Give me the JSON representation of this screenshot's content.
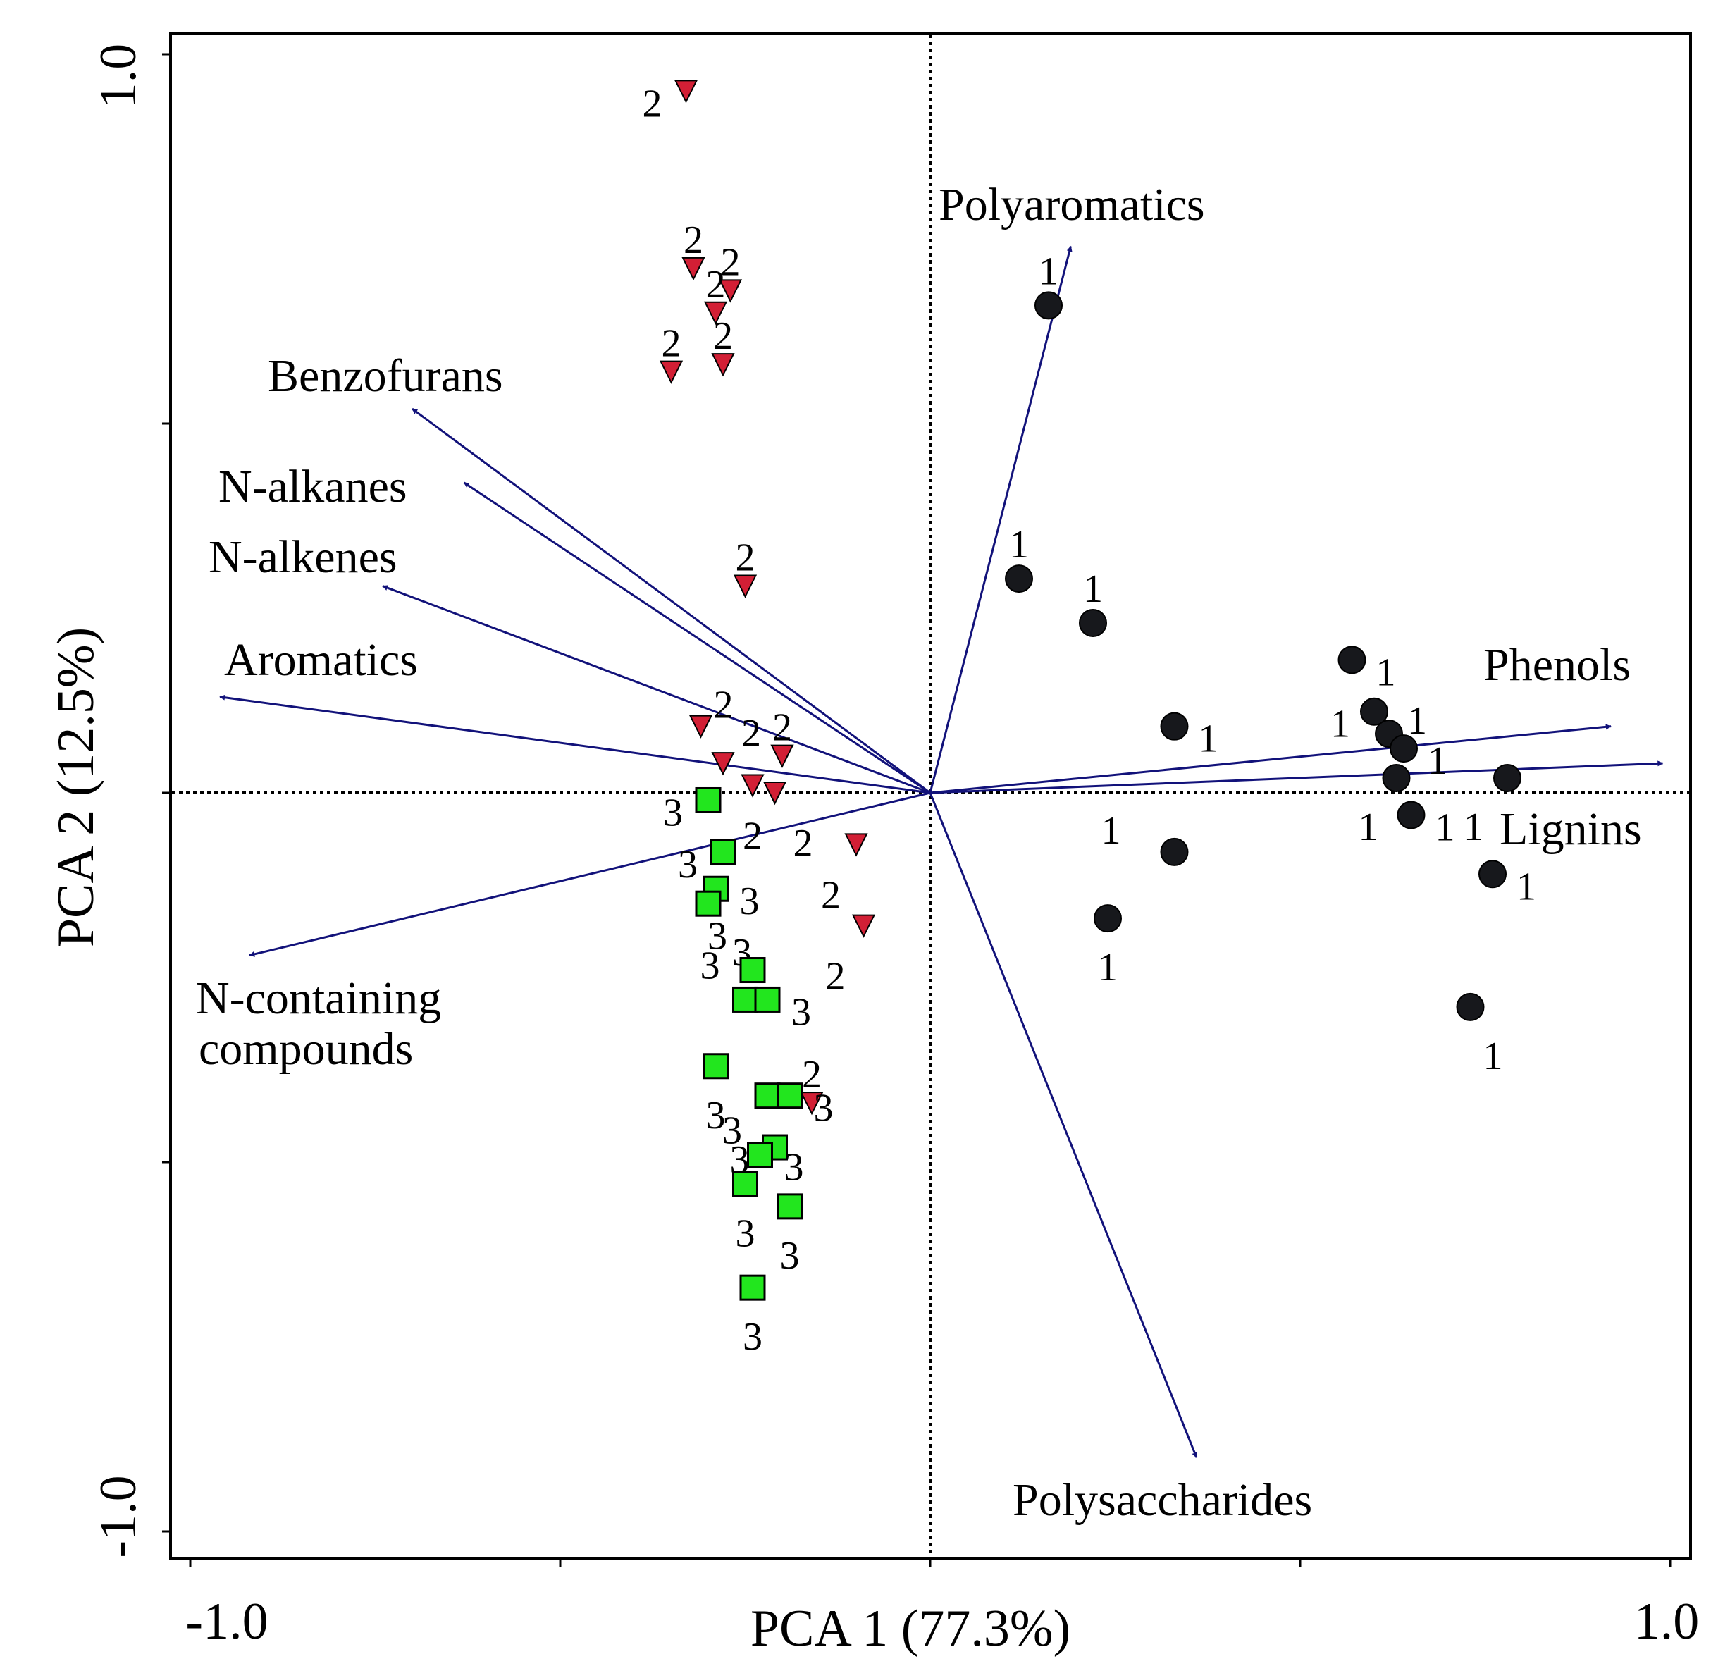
{
  "chart_data": {
    "type": "scatter",
    "subtype": "pca-biplot",
    "title": "",
    "xlabel": "PCA 1 (77.3%)",
    "ylabel": "PCA 2 (12.5%)",
    "xlim": [
      -1.0,
      1.0
    ],
    "ylim": [
      -1.0,
      1.0
    ],
    "x_tick_labels": [
      {
        "value": -1.0,
        "label": "-1.0"
      },
      {
        "value": 1.0,
        "label": "1.0"
      }
    ],
    "y_tick_labels": [
      {
        "value": 1.0,
        "label": "1.0"
      },
      {
        "value": -1.0,
        "label": "-1.0"
      }
    ],
    "x_ticks": [
      -1.0,
      -0.5,
      0.0,
      0.5,
      1.0
    ],
    "y_ticks": [
      -1.0,
      -0.5,
      0.0,
      0.5,
      1.0
    ],
    "reference_lines": {
      "x": 0,
      "y": 0,
      "style": "dotted"
    },
    "grid": false,
    "colors": {
      "loading_arrow": "#12127a",
      "group1": "#17181c",
      "group2": "#d21f35",
      "group3": "#22e61e"
    },
    "loadings": [
      {
        "name": "Polyaromatics",
        "x": 0.19,
        "y": 0.74
      },
      {
        "name": "Benzofurans",
        "x": -0.7,
        "y": 0.52
      },
      {
        "name": "N-alkanes",
        "x": -0.63,
        "y": 0.42
      },
      {
        "name": "N-alkenes",
        "x": -0.74,
        "y": 0.28
      },
      {
        "name": "Aromatics",
        "x": -0.96,
        "y": 0.13
      },
      {
        "name": "N-containing compounds",
        "x": -0.92,
        "y": -0.22
      },
      {
        "name": "Phenols",
        "x": 0.92,
        "y": 0.09
      },
      {
        "name": "Lignins",
        "x": 0.99,
        "y": 0.04
      },
      {
        "name": "Polysaccharides",
        "x": 0.36,
        "y": -0.9
      }
    ],
    "series": [
      {
        "group": "1",
        "marker": "circle",
        "points": [
          {
            "x": 0.16,
            "y": 0.66
          },
          {
            "x": 0.12,
            "y": 0.29
          },
          {
            "x": 0.22,
            "y": 0.23
          },
          {
            "x": 0.33,
            "y": 0.09
          },
          {
            "x": 0.57,
            "y": 0.18
          },
          {
            "x": 0.6,
            "y": 0.11
          },
          {
            "x": 0.62,
            "y": 0.08
          },
          {
            "x": 0.64,
            "y": 0.06
          },
          {
            "x": 0.63,
            "y": 0.02
          },
          {
            "x": 0.65,
            "y": -0.03
          },
          {
            "x": 0.78,
            "y": 0.02
          },
          {
            "x": 0.33,
            "y": -0.08
          },
          {
            "x": 0.24,
            "y": -0.17
          },
          {
            "x": 0.76,
            "y": -0.11
          },
          {
            "x": 0.73,
            "y": -0.29
          }
        ]
      },
      {
        "group": "2",
        "marker": "triangle-down",
        "points": [
          {
            "x": -0.33,
            "y": 0.95
          },
          {
            "x": -0.32,
            "y": 0.71
          },
          {
            "x": -0.27,
            "y": 0.68
          },
          {
            "x": -0.29,
            "y": 0.65
          },
          {
            "x": -0.35,
            "y": 0.57
          },
          {
            "x": -0.28,
            "y": 0.58
          },
          {
            "x": -0.25,
            "y": 0.28
          },
          {
            "x": -0.31,
            "y": 0.09
          },
          {
            "x": -0.28,
            "y": 0.04
          },
          {
            "x": -0.2,
            "y": 0.05
          },
          {
            "x": -0.24,
            "y": 0.01
          },
          {
            "x": -0.21,
            "y": 0.0
          },
          {
            "x": -0.1,
            "y": -0.07
          },
          {
            "x": -0.09,
            "y": -0.18
          },
          {
            "x": -0.16,
            "y": -0.42
          }
        ]
      },
      {
        "group": "3",
        "marker": "square",
        "points": [
          {
            "x": -0.3,
            "y": -0.01
          },
          {
            "x": -0.28,
            "y": -0.08
          },
          {
            "x": -0.29,
            "y": -0.13
          },
          {
            "x": -0.3,
            "y": -0.15
          },
          {
            "x": -0.24,
            "y": -0.24
          },
          {
            "x": -0.25,
            "y": -0.28
          },
          {
            "x": -0.22,
            "y": -0.28
          },
          {
            "x": -0.29,
            "y": -0.37
          },
          {
            "x": -0.22,
            "y": -0.41
          },
          {
            "x": -0.19,
            "y": -0.41
          },
          {
            "x": -0.21,
            "y": -0.48
          },
          {
            "x": -0.23,
            "y": -0.49
          },
          {
            "x": -0.25,
            "y": -0.53
          },
          {
            "x": -0.19,
            "y": -0.56
          },
          {
            "x": -0.24,
            "y": -0.67
          }
        ]
      }
    ]
  }
}
